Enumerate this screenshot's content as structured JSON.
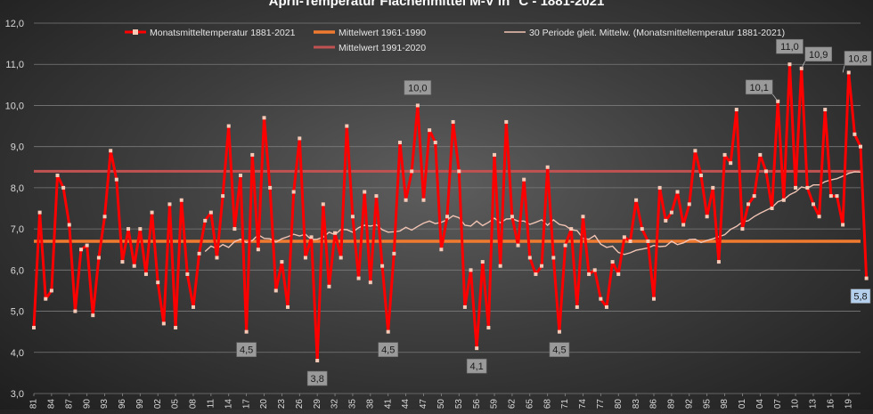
{
  "chart_data": {
    "type": "line",
    "title": "April-Temperatur Flächenmittel M-V in °C - 1881-2021",
    "ylim": [
      3.0,
      12.0
    ],
    "y_ticks": [
      "3,0",
      "4,0",
      "5,0",
      "6,0",
      "7,0",
      "8,0",
      "9,0",
      "10,0",
      "11,0",
      "12,0"
    ],
    "x_ticks": [
      "1881",
      "1884",
      "1887",
      "1890",
      "1893",
      "1896",
      "1899",
      "1902",
      "1905",
      "1908",
      "1911",
      "1914",
      "1917",
      "1920",
      "1923",
      "1926",
      "1929",
      "1932",
      "1935",
      "1938",
      "1941",
      "1944",
      "1947",
      "1950",
      "1953",
      "1956",
      "1959",
      "1962",
      "1965",
      "1968",
      "1971",
      "1974",
      "1977",
      "1980",
      "1983",
      "1986",
      "1989",
      "1992",
      "1995",
      "1998",
      "2001",
      "2004",
      "2007",
      "2010",
      "2013",
      "2016",
      "2019"
    ],
    "x_tick_labels": [
      "81",
      "84",
      "87",
      "90",
      "93",
      "96",
      "99",
      "02",
      "05",
      "08",
      "11",
      "14",
      "17",
      "20",
      "23",
      "26",
      "29",
      "32",
      "35",
      "38",
      "41",
      "44",
      "47",
      "50",
      "53",
      "56",
      "59",
      "62",
      "65",
      "68",
      "71",
      "74",
      "77",
      "80",
      "83",
      "86",
      "89",
      "92",
      "95",
      "98",
      "01",
      "04",
      "07",
      "10",
      "13",
      "16",
      "19"
    ],
    "grid": true,
    "legend_position": "top",
    "colors": {
      "monthly": "#ff0000",
      "marker": "#f6c9b6",
      "mean_1961_1990": "#f07a30",
      "mean_1991_2020": "#c05252",
      "moving_avg": "#f1c4b4",
      "label_box": "#9a9a9a",
      "label_box_min": "#b4d0ec"
    },
    "series": [
      {
        "name": "Monatsmitteltemperatur 1881-2021",
        "x_start": 1881,
        "values": [
          4.6,
          7.4,
          5.3,
          5.5,
          8.3,
          8.0,
          7.1,
          5.0,
          6.5,
          6.6,
          4.9,
          6.3,
          7.3,
          8.9,
          8.2,
          6.2,
          7.0,
          6.1,
          7.0,
          5.9,
          7.4,
          5.7,
          4.7,
          7.6,
          4.6,
          7.7,
          5.9,
          5.1,
          6.4,
          7.2,
          7.4,
          6.3,
          7.8,
          9.5,
          7.0,
          8.3,
          4.5,
          8.8,
          6.5,
          9.7,
          8.0,
          5.5,
          6.2,
          5.1,
          7.9,
          9.2,
          6.3,
          6.8,
          3.8,
          7.6,
          5.6,
          6.9,
          6.3,
          9.5,
          7.3,
          5.8,
          7.9,
          5.7,
          7.8,
          6.1,
          4.5,
          6.4,
          9.1,
          7.7,
          8.4,
          10.0,
          7.7,
          9.4,
          9.1,
          6.5,
          7.3,
          9.6,
          8.4,
          5.1,
          6.0,
          4.1,
          6.2,
          4.6,
          8.8,
          6.1,
          9.6,
          7.3,
          6.6,
          8.2,
          6.3,
          5.9,
          6.1,
          8.5,
          6.3,
          4.5,
          6.6,
          7.0,
          5.1,
          7.3,
          5.9,
          6.0,
          5.3,
          5.1,
          6.2,
          5.9,
          6.8,
          6.7,
          7.7,
          7.0,
          6.7,
          5.3,
          8.0,
          7.2,
          7.4,
          7.9,
          7.1,
          7.6,
          8.9,
          8.3,
          7.3,
          8.0,
          6.2,
          8.8,
          8.6,
          9.9,
          7.0,
          7.6,
          7.8,
          8.8,
          8.4,
          7.5,
          10.1,
          7.7,
          11.0,
          8.0,
          10.9,
          8.0,
          7.6,
          7.3,
          9.9,
          7.8,
          7.8,
          7.1,
          10.8,
          9.3,
          9.0,
          5.8
        ]
      },
      {
        "name": "Mittelwert 1961-1990",
        "value": 6.7
      },
      {
        "name": "Mittelwert 1991-2020",
        "value": 8.4
      },
      {
        "name": "30 Periode gleit. Mittelw. (Monatsmitteltemperatur 1881-2021)",
        "x_start": 1910,
        "values": [
          6.45,
          6.58,
          6.52,
          6.62,
          6.55,
          6.69,
          6.75,
          6.67,
          6.72,
          6.86,
          6.77,
          6.76,
          6.68,
          6.76,
          6.81,
          6.87,
          6.83,
          6.87,
          6.74,
          6.75,
          6.8,
          6.92,
          6.86,
          6.99,
          6.98,
          6.92,
          7.03,
          7.09,
          7.07,
          7.1,
          6.98,
          6.92,
          6.93,
          6.95,
          7.04,
          6.97,
          7.06,
          7.14,
          7.19,
          7.13,
          7.16,
          7.22,
          7.32,
          7.27,
          7.09,
          7.07,
          7.19,
          7.08,
          7.16,
          7.26,
          7.15,
          7.24,
          7.25,
          7.19,
          7.19,
          7.11,
          7.16,
          7.22,
          7.09,
          7.22,
          7.11,
          7.08,
          6.98,
          6.96,
          6.77,
          6.75,
          6.84,
          6.63,
          6.55,
          6.58,
          6.43,
          6.38,
          6.42,
          6.48,
          6.51,
          6.54,
          6.6,
          6.57,
          6.58,
          6.7,
          6.62,
          6.66,
          6.74,
          6.75,
          6.67,
          6.72,
          6.76,
          6.81,
          6.86,
          6.99,
          7.06,
          7.17,
          7.2,
          7.3,
          7.38,
          7.45,
          7.52,
          7.66,
          7.71,
          7.83,
          7.9,
          8.02,
          7.99,
          8.07,
          8.07,
          8.15,
          8.19,
          8.22,
          8.28,
          8.35,
          8.39,
          8.38
        ]
      }
    ],
    "annotations": [
      {
        "year": 1917,
        "value": 4.5,
        "text": "4,5",
        "position": "below"
      },
      {
        "year": 1929,
        "value": 3.8,
        "text": "3,8",
        "position": "below"
      },
      {
        "year": 1941,
        "value": 4.5,
        "text": "4,5",
        "position": "below"
      },
      {
        "year": 1946,
        "value": 10.0,
        "text": "10,0",
        "position": "above"
      },
      {
        "year": 1956,
        "value": 4.1,
        "text": "4,1",
        "position": "below"
      },
      {
        "year": 1970,
        "value": 4.5,
        "text": "4,5",
        "position": "below"
      },
      {
        "year": 2007,
        "value": 10.1,
        "text": "10,1",
        "position": "left"
      },
      {
        "year": 2009,
        "value": 11.0,
        "text": "11,0",
        "position": "above"
      },
      {
        "year": 2011,
        "value": 10.9,
        "text": "10,9",
        "position": "right"
      },
      {
        "year": 2018,
        "value": 10.8,
        "text": "10,8",
        "position": "right"
      },
      {
        "year": 2021,
        "value": 5.8,
        "text": "5,8",
        "position": "below",
        "style": "min"
      }
    ]
  }
}
